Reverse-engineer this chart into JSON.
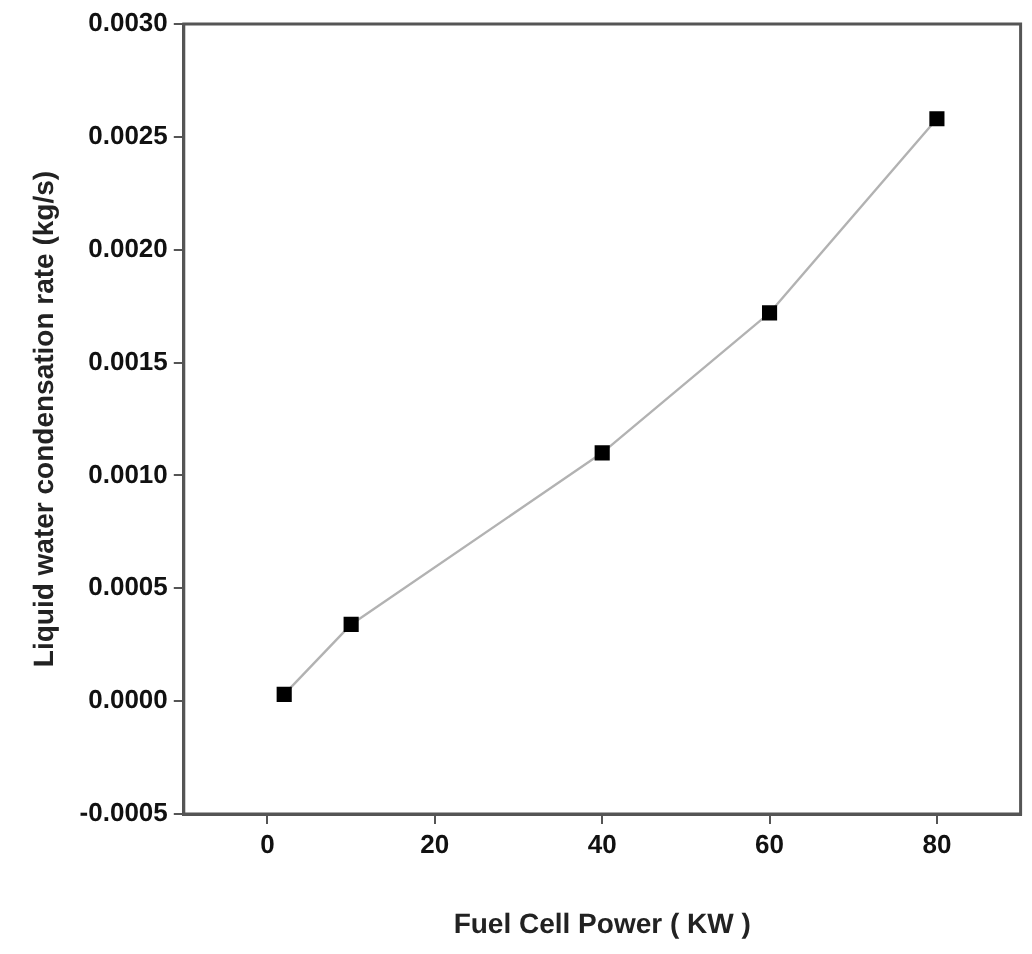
{
  "chart_data": {
    "type": "line",
    "xlabel": "Fuel Cell Power ( KW )",
    "ylabel": "Liquid water condensation rate (kg/s)",
    "x": [
      2,
      10,
      40,
      60,
      80
    ],
    "series": [
      {
        "color": "#000000",
        "values": [
          3e-05,
          0.00034,
          0.0011,
          0.00172,
          0.00258
        ]
      }
    ],
    "xlim": [
      -10,
      90
    ],
    "xticks": [
      0,
      20,
      40,
      60,
      80
    ],
    "ylim": [
      -0.0005,
      0.003
    ],
    "yticks": [
      {
        "value": -0.0005,
        "label": "-0.0005"
      },
      {
        "value": 0,
        "label": "0.0000"
      },
      {
        "value": 0.0005,
        "label": "0.0005"
      },
      {
        "value": 0.001,
        "label": "0.0010"
      },
      {
        "value": 0.0015,
        "label": "0.0015"
      },
      {
        "value": 0.002,
        "label": "0.0020"
      },
      {
        "value": 0.0025,
        "label": "0.0025"
      },
      {
        "value": 0.003,
        "label": "0.0030"
      }
    ],
    "marker": "square",
    "line_style": "solid",
    "grid": false,
    "legend": false
  }
}
